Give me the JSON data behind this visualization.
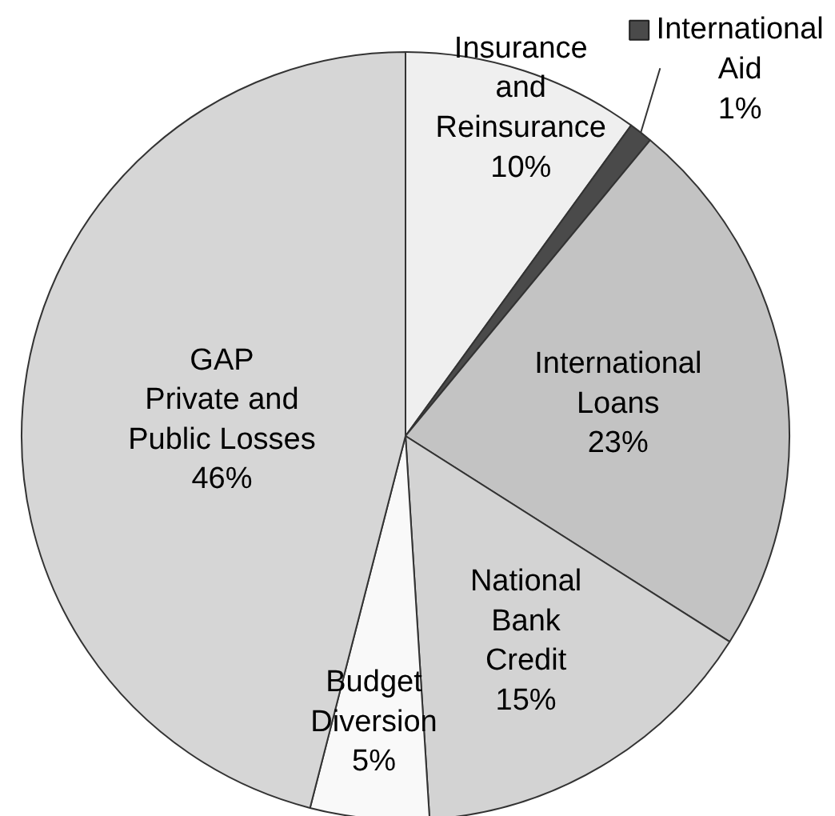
{
  "chart_data": {
    "type": "pie",
    "categories": [
      "Insurance\nand\nReinsurance",
      "International\nAid",
      "International\nLoans",
      "National\nBank\nCredit",
      "Budget\nDiversion",
      "GAP\nPrivate and\nPublic Losses"
    ],
    "values": [
      10,
      1,
      23,
      15,
      5,
      46
    ],
    "colors": [
      "#efefef",
      "#4a4a4a",
      "#c3c3c3",
      "#d3d3d3",
      "#f9f9f9",
      "#d6d6d6"
    ],
    "value_labels": [
      "10%",
      "1%",
      "23%",
      "15%",
      "5%",
      "46%"
    ]
  }
}
